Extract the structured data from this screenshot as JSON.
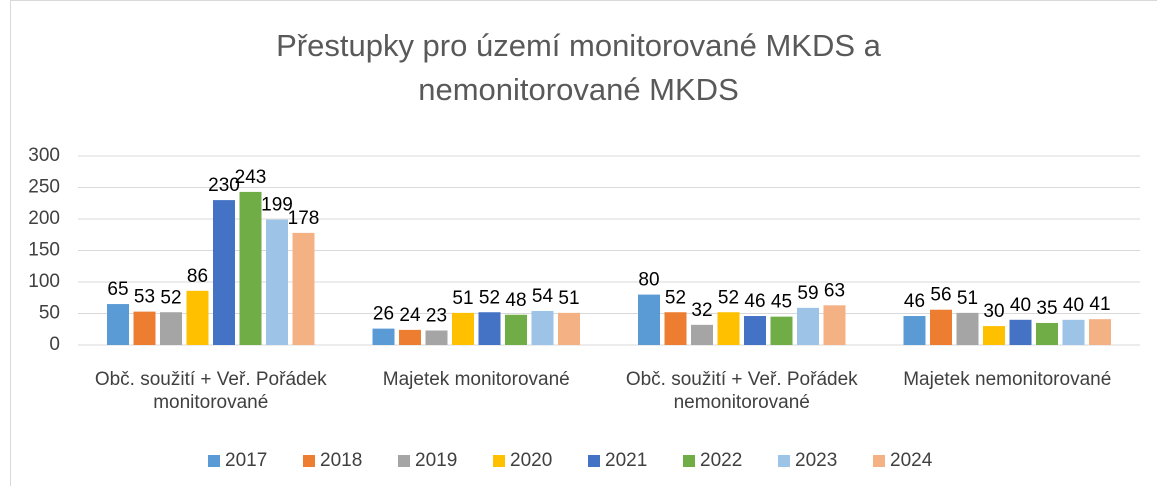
{
  "chart_data": {
    "type": "bar",
    "title": "Přestupky pro území monitorované MKDS a nemonitorované MKDS",
    "categories": [
      "Obč. soužití + Veř. Pořádek monitorované",
      "Majetek monitorované",
      "Obč. soužití + Veř. Pořádek nemonitorované",
      "Majetek nemonitorované"
    ],
    "series": [
      {
        "name": "2017",
        "color": "#5b9bd5",
        "values": [
          65,
          26,
          80,
          46
        ]
      },
      {
        "name": "2018",
        "color": "#ed7d31",
        "values": [
          53,
          24,
          52,
          56
        ]
      },
      {
        "name": "2019",
        "color": "#a5a5a5",
        "values": [
          52,
          23,
          32,
          51
        ]
      },
      {
        "name": "2020",
        "color": "#ffc000",
        "values": [
          86,
          51,
          52,
          30
        ]
      },
      {
        "name": "2021",
        "color": "#4472c4",
        "values": [
          230,
          52,
          46,
          40
        ]
      },
      {
        "name": "2022",
        "color": "#70ad47",
        "values": [
          243,
          48,
          45,
          35
        ]
      },
      {
        "name": "2023",
        "color": "#9dc3e6",
        "values": [
          199,
          54,
          59,
          40
        ]
      },
      {
        "name": "2024",
        "color": "#f4b183",
        "values": [
          178,
          51,
          63,
          41
        ]
      }
    ],
    "ylim": [
      0,
      300
    ],
    "yticks": [
      0,
      50,
      100,
      150,
      200,
      250,
      300
    ],
    "grid": true,
    "legend": "bottom"
  }
}
